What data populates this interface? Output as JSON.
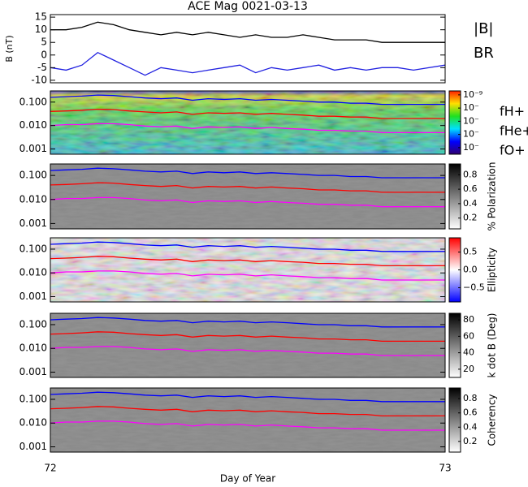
{
  "chart_data": [
    {
      "type": "line",
      "title": "ACE Mag 0021-03-13",
      "ylabel": "B (nT)",
      "x": [
        72,
        72.04,
        72.08,
        72.12,
        72.16,
        72.2,
        72.24,
        72.28,
        72.32,
        72.36,
        72.4,
        72.44,
        72.48,
        72.52,
        72.56,
        72.6,
        72.64,
        72.68,
        72.72,
        72.76,
        72.8,
        72.84,
        72.88,
        72.92,
        73
      ],
      "series": [
        {
          "name": "|B|",
          "color": "#000000",
          "values": [
            10,
            10,
            11,
            13,
            12,
            10,
            9,
            8,
            9,
            8,
            9,
            8,
            7,
            8,
            7,
            7,
            8,
            7,
            6,
            6,
            6,
            5,
            5,
            5,
            5
          ]
        },
        {
          "name": "BR",
          "color": "#2020e0",
          "values": [
            -5,
            -6,
            -4,
            1,
            -2,
            -5,
            -8,
            -5,
            -6,
            -7,
            -6,
            -5,
            -4,
            -7,
            -5,
            -6,
            -5,
            -4,
            -6,
            -5,
            -6,
            -5,
            -5,
            -6,
            -4
          ]
        }
      ],
      "xlim": [
        72,
        73
      ],
      "ylim": [
        -11,
        16
      ],
      "yticks": [
        -10,
        -5,
        0,
        5,
        10,
        15
      ]
    },
    {
      "type": "spectrogram",
      "log": true,
      "colormap": "rainbow",
      "x": [
        72,
        72.04,
        72.08,
        72.12,
        72.16,
        72.2,
        72.24,
        72.28,
        72.32,
        72.36,
        72.4,
        72.44,
        72.48,
        72.52,
        72.56,
        72.6,
        72.64,
        72.68,
        72.72,
        72.76,
        72.8,
        72.84,
        72.88,
        72.92,
        73
      ],
      "series": [
        {
          "name": "fH+",
          "color": "#0000ff",
          "values": [
            0.16,
            0.17,
            0.18,
            0.2,
            0.19,
            0.17,
            0.15,
            0.14,
            0.15,
            0.12,
            0.14,
            0.13,
            0.14,
            0.12,
            0.13,
            0.12,
            0.11,
            0.1,
            0.1,
            0.09,
            0.09,
            0.08,
            0.08,
            0.08,
            0.08
          ]
        },
        {
          "name": "fHe+",
          "color": "#ff0000",
          "values": [
            0.04,
            0.042,
            0.045,
            0.05,
            0.048,
            0.042,
            0.038,
            0.035,
            0.038,
            0.03,
            0.035,
            0.033,
            0.035,
            0.03,
            0.033,
            0.03,
            0.028,
            0.025,
            0.025,
            0.023,
            0.023,
            0.02,
            0.02,
            0.02,
            0.02
          ]
        },
        {
          "name": "fO+",
          "color": "#ff00ff",
          "values": [
            0.01,
            0.011,
            0.011,
            0.012,
            0.012,
            0.011,
            0.0095,
            0.0088,
            0.0095,
            0.0075,
            0.0088,
            0.0083,
            0.0088,
            0.0075,
            0.0083,
            0.0075,
            0.007,
            0.0063,
            0.0063,
            0.0058,
            0.0058,
            0.005,
            0.005,
            0.005,
            0.005
          ]
        }
      ],
      "xlim": [
        72,
        73
      ],
      "ylim": [
        0.0006,
        0.3
      ],
      "yticks": [
        {
          "value": 0.001,
          "label": "0.001"
        },
        {
          "value": 0.01,
          "label": "0.010"
        },
        {
          "value": 0.1,
          "label": "0.100"
        }
      ],
      "clim": [
        -13.5,
        -8.7
      ],
      "cticks": [
        {
          "value": -9,
          "label": "10⁻⁹"
        },
        {
          "value": -10,
          "label": "10⁻"
        },
        {
          "value": -11,
          "label": "10⁻"
        },
        {
          "value": -12,
          "label": "10⁻"
        },
        {
          "value": -13,
          "label": "10⁻"
        }
      ]
    },
    {
      "type": "spectrogram",
      "log": true,
      "colormap": "gray",
      "clabel": "% Polarization",
      "xlim": [
        72,
        73
      ],
      "ylim": [
        0.0006,
        0.3
      ],
      "yticks": [
        {
          "value": 0.001,
          "label": "0.001"
        },
        {
          "value": 0.01,
          "label": "0.010"
        },
        {
          "value": 0.1,
          "label": "0.100"
        }
      ],
      "clim": [
        0.05,
        0.95
      ],
      "cticks": [
        0.2,
        0.4,
        0.6,
        0.8
      ]
    },
    {
      "type": "spectrogram",
      "log": true,
      "colormap": "bwr",
      "clabel": "Ellipticity",
      "xlim": [
        72,
        73
      ],
      "ylim": [
        0.0006,
        0.3
      ],
      "yticks": [
        {
          "value": 0.001,
          "label": "0.001"
        },
        {
          "value": 0.01,
          "label": "0.010"
        },
        {
          "value": 0.1,
          "label": "0.100"
        }
      ],
      "clim": [
        -0.9,
        0.9
      ],
      "cticks": [
        {
          "value": -0.5,
          "label": "−0.5"
        },
        {
          "value": 0,
          "label": "0.0"
        },
        0.5
      ]
    },
    {
      "type": "spectrogram",
      "log": true,
      "colormap": "gray",
      "clabel": "k dot B (Deg)",
      "xlim": [
        72,
        73
      ],
      "ylim": [
        0.0006,
        0.3
      ],
      "yticks": [
        {
          "value": 0.001,
          "label": "0.001"
        },
        {
          "value": 0.01,
          "label": "0.010"
        },
        {
          "value": 0.1,
          "label": "0.100"
        }
      ],
      "clim": [
        10,
        88
      ],
      "cticks": [
        20,
        40,
        60,
        80
      ]
    },
    {
      "type": "spectrogram",
      "log": true,
      "colormap": "gray",
      "clabel": "Coherency",
      "xlim": [
        72,
        73
      ],
      "ylim": [
        0.0006,
        0.3
      ],
      "yticks": [
        {
          "value": 0.001,
          "label": "0.001"
        },
        {
          "value": 0.01,
          "label": "0.010"
        },
        {
          "value": 0.1,
          "label": "0.100"
        }
      ],
      "clim": [
        0.05,
        0.95
      ],
      "cticks": [
        0.2,
        0.4,
        0.6,
        0.8
      ],
      "xlabel": "Day of Year",
      "xticks": [
        72,
        73
      ]
    }
  ]
}
